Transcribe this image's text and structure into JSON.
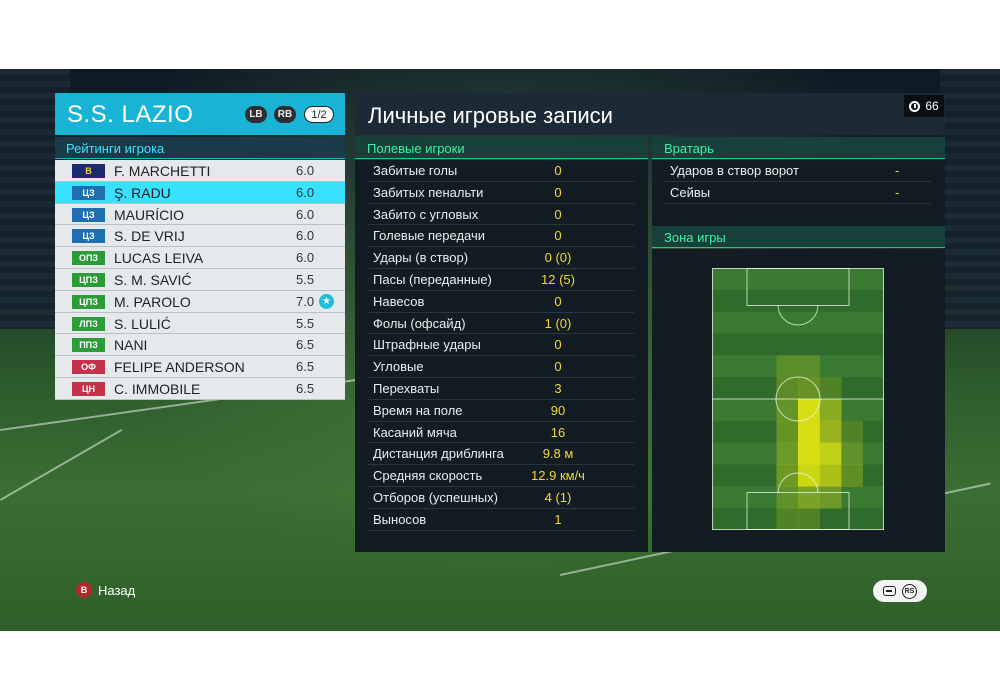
{
  "team": {
    "name": "S.S. LAZIO",
    "lb": "LB",
    "rb": "RB",
    "page": "1/2"
  },
  "ratings_title": "Рейтинги игрока",
  "players": [
    {
      "position": "В",
      "badge_color": "#1e2a6e",
      "badge_text": "#f6d23a",
      "name": "F. MARCHETTI",
      "rating": "6.0",
      "selected": false,
      "star": false
    },
    {
      "position": "ЦЗ",
      "badge_color": "#1f6fb0",
      "badge_text": "#ffffff",
      "name": "Ş. RADU",
      "rating": "6.0",
      "selected": true,
      "star": false
    },
    {
      "position": "ЦЗ",
      "badge_color": "#1f6fb0",
      "badge_text": "#ffffff",
      "name": "MAURÍCIO",
      "rating": "6.0",
      "selected": false,
      "star": false
    },
    {
      "position": "ЦЗ",
      "badge_color": "#1f6fb0",
      "badge_text": "#ffffff",
      "name": "S. DE VRIJ",
      "rating": "6.0",
      "selected": false,
      "star": false
    },
    {
      "position": "ОПЗ",
      "badge_color": "#2e9b3a",
      "badge_text": "#ffffff",
      "name": "LUCAS LEIVA",
      "rating": "6.0",
      "selected": false,
      "star": false
    },
    {
      "position": "ЦПЗ",
      "badge_color": "#2e9b3a",
      "badge_text": "#ffffff",
      "name": "S. M. SAVIĆ",
      "rating": "5.5",
      "selected": false,
      "star": false
    },
    {
      "position": "ЦПЗ",
      "badge_color": "#2e9b3a",
      "badge_text": "#ffffff",
      "name": "M. PAROLO",
      "rating": "7.0",
      "selected": false,
      "star": true
    },
    {
      "position": "ЛПЗ",
      "badge_color": "#2e9b3a",
      "badge_text": "#ffffff",
      "name": "S. LULIĆ",
      "rating": "5.5",
      "selected": false,
      "star": false
    },
    {
      "position": "ППЗ",
      "badge_color": "#2e9b3a",
      "badge_text": "#ffffff",
      "name": "NANI",
      "rating": "6.5",
      "selected": false,
      "star": false
    },
    {
      "position": "ОФ",
      "badge_color": "#c4314b",
      "badge_text": "#ffffff",
      "name": "FELIPE ANDERSON",
      "rating": "6.5",
      "selected": false,
      "star": false
    },
    {
      "position": "ЦН",
      "badge_color": "#c4314b",
      "badge_text": "#ffffff",
      "name": "C. IMMOBILE",
      "rating": "6.5",
      "selected": false,
      "star": false
    }
  ],
  "main_title": "Личные игровые записи",
  "timer_value": "66",
  "field_players_title": "Полевые игроки",
  "field_stats": [
    {
      "label": "Забитые голы",
      "value": "0"
    },
    {
      "label": "Забитых пенальти",
      "value": "0"
    },
    {
      "label": "Забито с угловых",
      "value": "0"
    },
    {
      "label": "Голевые передачи",
      "value": "0"
    },
    {
      "label": "Удары (в створ)",
      "value": "0 (0)"
    },
    {
      "label": "Пасы (переданные)",
      "value": "12 (5)"
    },
    {
      "label": "Навесов",
      "value": "0"
    },
    {
      "label": "Фолы (офсайд)",
      "value": "1 (0)"
    },
    {
      "label": "Штрафные удары",
      "value": "0"
    },
    {
      "label": "Угловые",
      "value": "0"
    },
    {
      "label": "Перехваты",
      "value": "3"
    },
    {
      "label": "Время на поле",
      "value": "90"
    },
    {
      "label": "Касаний мяча",
      "value": "16"
    },
    {
      "label": "Дистанция дриблинга",
      "value": "9.8 м"
    },
    {
      "label": "Средняя скорость",
      "value": "12.9 км/ч"
    },
    {
      "label": "Отборов (успешных)",
      "value": "4 (1)"
    },
    {
      "label": "Выносов",
      "value": "1"
    }
  ],
  "goalkeeper_title": "Вратарь",
  "gk_stats": [
    {
      "label": "Ударов в створ ворот",
      "value": "-"
    },
    {
      "label": "Сейвы",
      "value": "-"
    }
  ],
  "zone_title": "Зона игры",
  "heatmap": {
    "cols": 8,
    "rows": 12,
    "intensity": [
      [
        0,
        0,
        0,
        0,
        0,
        0,
        0,
        0
      ],
      [
        0,
        0,
        0,
        0,
        0,
        0,
        0,
        0
      ],
      [
        0,
        0,
        0,
        0,
        0,
        0,
        0,
        0
      ],
      [
        0,
        0,
        0,
        0,
        0,
        0,
        0,
        0
      ],
      [
        0,
        0,
        0,
        0.25,
        0.25,
        0,
        0,
        0
      ],
      [
        0,
        0,
        0,
        0.3,
        0.4,
        0.2,
        0,
        0
      ],
      [
        0,
        0,
        0,
        0.35,
        1,
        0.6,
        0,
        0
      ],
      [
        0,
        0,
        0,
        0.4,
        1,
        0.7,
        0.2,
        0
      ],
      [
        0,
        0,
        0,
        0.4,
        1,
        0.9,
        0.3,
        0
      ],
      [
        0,
        0,
        0,
        0.45,
        0.95,
        0.8,
        0.35,
        0
      ],
      [
        0,
        0,
        0,
        0.3,
        0.5,
        0.4,
        0,
        0
      ],
      [
        0,
        0,
        0,
        0.2,
        0.2,
        0,
        0,
        0
      ]
    ]
  },
  "footer": {
    "b_icon": "B",
    "back_label": "Назад",
    "rs_icon": "RS"
  }
}
